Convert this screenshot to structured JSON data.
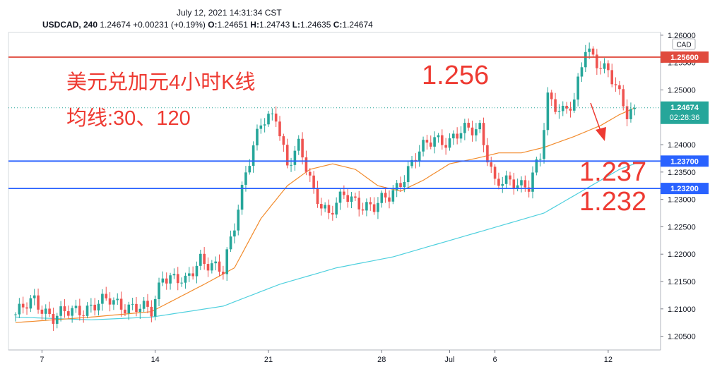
{
  "header": {
    "datetime": "July 12, 2021 14:31:34 CST",
    "symbol": "USDCAD, 240",
    "last": "1.24674",
    "change": "+0.00231 (+0.19%)",
    "o_label": "O:",
    "o_value": "1.24651",
    "h_label": "H:",
    "h_value": "1.24743",
    "l_label": "L:",
    "l_value": "1.24635",
    "c_label": "C:",
    "c_value": "1.24674"
  },
  "chart_data": {
    "type": "candlestick",
    "title": "",
    "xlabel": "",
    "ylabel": "",
    "currency_label": "CAD",
    "ylim": [
      1.2025,
      1.2605
    ],
    "y_ticks": [
      "1.26000",
      "1.25500",
      "1.25000",
      "1.24500",
      "1.24000",
      "1.23500",
      "1.23000",
      "1.22500",
      "1.22000",
      "1.21500",
      "1.21000",
      "1.20500"
    ],
    "y_tick_values": [
      1.26,
      1.255,
      1.25,
      1.245,
      1.24,
      1.235,
      1.23,
      1.225,
      1.22,
      1.215,
      1.21,
      1.205
    ],
    "x_ticks": [
      {
        "label": "7",
        "bar": 7
      },
      {
        "label": "14",
        "bar": 37
      },
      {
        "label": "21",
        "bar": 67
      },
      {
        "label": "28",
        "bar": 97
      },
      {
        "label": "Jul",
        "bar": 115
      },
      {
        "label": "6",
        "bar": 127
      },
      {
        "label": "12",
        "bar": 157
      }
    ],
    "bar_count": 170,
    "anchors": [
      [
        0,
        1.209
      ],
      [
        5,
        1.2115
      ],
      [
        10,
        1.2085
      ],
      [
        15,
        1.2095
      ],
      [
        20,
        1.2105
      ],
      [
        25,
        1.2115
      ],
      [
        30,
        1.2105
      ],
      [
        36,
        1.2095
      ],
      [
        39,
        1.2165
      ],
      [
        45,
        1.2145
      ],
      [
        49,
        1.2195
      ],
      [
        55,
        1.2165
      ],
      [
        58,
        1.2255
      ],
      [
        61,
        1.2355
      ],
      [
        65,
        1.2435
      ],
      [
        69,
        1.2455
      ],
      [
        72,
        1.2365
      ],
      [
        75,
        1.2395
      ],
      [
        79,
        1.2315
      ],
      [
        83,
        1.2275
      ],
      [
        87,
        1.2305
      ],
      [
        91,
        1.2295
      ],
      [
        95,
        1.2285
      ],
      [
        99,
        1.2305
      ],
      [
        103,
        1.2345
      ],
      [
        107,
        1.2385
      ],
      [
        111,
        1.2415
      ],
      [
        115,
        1.2405
      ],
      [
        119,
        1.2425
      ],
      [
        123,
        1.2435
      ],
      [
        127,
        1.2325
      ],
      [
        132,
        1.2335
      ],
      [
        136,
        1.2325
      ],
      [
        139,
        1.2375
      ],
      [
        141,
        1.2485
      ],
      [
        145,
        1.2465
      ],
      [
        148,
        1.2475
      ],
      [
        151,
        1.2575
      ],
      [
        154,
        1.2555
      ],
      [
        157,
        1.2535
      ],
      [
        160,
        1.2485
      ],
      [
        162,
        1.2455
      ],
      [
        164,
        1.2467
      ]
    ],
    "ma_fast_anchors": [
      [
        0,
        1.2075
      ],
      [
        20,
        1.2085
      ],
      [
        36,
        1.2095
      ],
      [
        50,
        1.2145
      ],
      [
        58,
        1.2175
      ],
      [
        65,
        1.2265
      ],
      [
        72,
        1.2325
      ],
      [
        78,
        1.2355
      ],
      [
        84,
        1.2365
      ],
      [
        90,
        1.2355
      ],
      [
        96,
        1.2325
      ],
      [
        102,
        1.2315
      ],
      [
        108,
        1.2335
      ],
      [
        115,
        1.2365
      ],
      [
        122,
        1.2375
      ],
      [
        128,
        1.2385
      ],
      [
        134,
        1.2385
      ],
      [
        140,
        1.2395
      ],
      [
        148,
        1.2415
      ],
      [
        155,
        1.2435
      ],
      [
        160,
        1.2455
      ],
      [
        164,
        1.2467
      ]
    ],
    "ma_slow_anchors": [
      [
        0,
        1.2085
      ],
      [
        20,
        1.208
      ],
      [
        36,
        1.2085
      ],
      [
        55,
        1.2105
      ],
      [
        70,
        1.2145
      ],
      [
        85,
        1.2175
      ],
      [
        100,
        1.2195
      ],
      [
        115,
        1.2225
      ],
      [
        130,
        1.2255
      ],
      [
        140,
        1.2275
      ],
      [
        150,
        1.2315
      ],
      [
        160,
        1.2355
      ],
      [
        164,
        1.2365
      ]
    ],
    "series": [
      {
        "name": "30",
        "color": "#f28b2c"
      },
      {
        "name": "120",
        "color": "#4fd0de"
      }
    ],
    "price_levels": [
      {
        "label": "1.25600",
        "value": 1.256,
        "color": "#e04a3d"
      },
      {
        "label": "1.23700",
        "value": 1.237,
        "color": "#2962ff"
      },
      {
        "label": "1.23200",
        "value": 1.232,
        "color": "#2962ff"
      }
    ],
    "current_price": {
      "label": "1.24674",
      "countdown": "02:28:36",
      "value": 1.24674,
      "color": "#26a69a"
    },
    "annotations": {
      "line1": "美元兑加元4小时K线",
      "line2": "均线:30、120",
      "resistance": "1.256",
      "support1": "1.237",
      "support2": "1.232"
    },
    "colors": {
      "up": "#26a69a",
      "down": "#ef5350",
      "annotation": "#ee3a32"
    }
  }
}
